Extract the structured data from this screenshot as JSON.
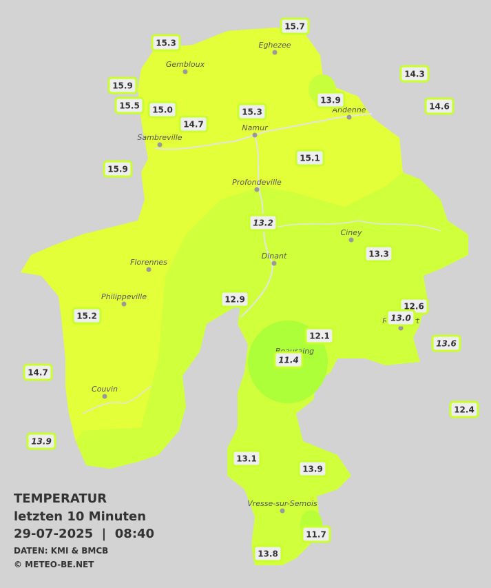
{
  "title": "TEMPERATUR",
  "subtitle": "letzten 10 Minuten",
  "datetime": "29-07-2025  |  08:40",
  "source": "DATEN: KMI & BMCB",
  "copyright": "© METEO-BE.NET",
  "towns": [
    "Eghezee",
    "Gembloux",
    "Andenne",
    "Namur",
    "Sambreville",
    "Profondeville",
    "Ciney",
    "Dinant",
    "Florennes",
    "Philippeville",
    "Rochefort",
    "Beauraing",
    "Couvin",
    "Vresse-sur-Semois"
  ],
  "stations": [
    {
      "value": "15.7",
      "italic": false
    },
    {
      "value": "15.3",
      "italic": false
    },
    {
      "value": "14.3",
      "italic": false
    },
    {
      "value": "15.9",
      "italic": false
    },
    {
      "value": "13.9",
      "italic": false
    },
    {
      "value": "15.5",
      "italic": false
    },
    {
      "value": "15.0",
      "italic": false
    },
    {
      "value": "15.3",
      "italic": false
    },
    {
      "value": "14.6",
      "italic": false
    },
    {
      "value": "14.7",
      "italic": false
    },
    {
      "value": "15.1",
      "italic": false
    },
    {
      "value": "15.9",
      "italic": false
    },
    {
      "value": "13.2",
      "italic": true
    },
    {
      "value": "13.3",
      "italic": false
    },
    {
      "value": "12.9",
      "italic": false
    },
    {
      "value": "12.6",
      "italic": false
    },
    {
      "value": "13.0",
      "italic": true
    },
    {
      "value": "15.2",
      "italic": false
    },
    {
      "value": "12.1",
      "italic": false
    },
    {
      "value": "13.6",
      "italic": true
    },
    {
      "value": "11.4",
      "italic": true
    },
    {
      "value": "14.7",
      "italic": false
    },
    {
      "value": "12.4",
      "italic": false
    },
    {
      "value": "13.9",
      "italic": true
    },
    {
      "value": "13.1",
      "italic": false
    },
    {
      "value": "13.9",
      "italic": false
    },
    {
      "value": "11.7",
      "italic": false
    },
    {
      "value": "13.8",
      "italic": false
    }
  ]
}
